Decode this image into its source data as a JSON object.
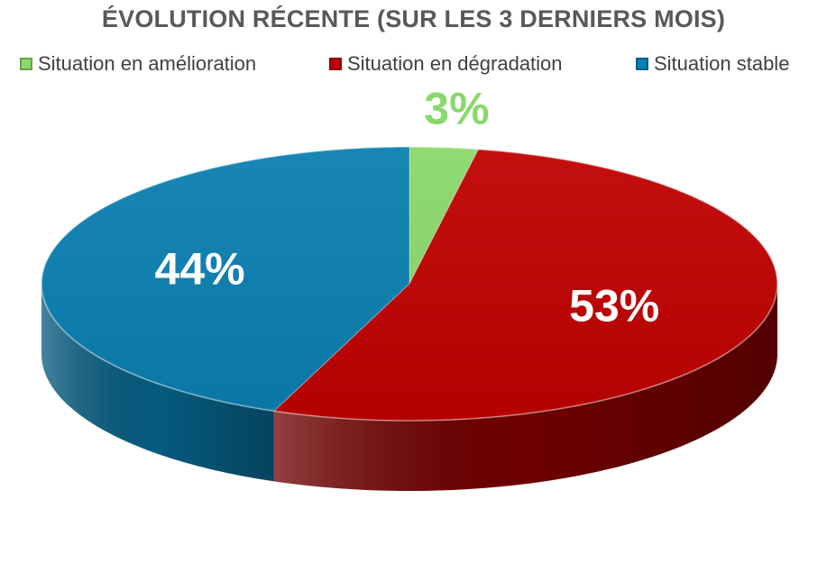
{
  "chart_data": {
    "type": "pie",
    "title": "ÉVOLUTION RÉCENTE (SUR LES 3 DERNIERS MOIS)",
    "legend_position": "top",
    "slices": [
      {
        "name": "Situation en amélioration",
        "value": 3,
        "label": "3%",
        "color": "#8ad86a",
        "side_color": "#5fae45",
        "label_color": "#8ad86a"
      },
      {
        "name": "Situation en dégradation",
        "value": 53,
        "label": "53%",
        "color": "#c00000",
        "side_color": "#6e0000",
        "label_color": "#ffffff"
      },
      {
        "name": "Situation stable",
        "value": 44,
        "label": "44%",
        "color": "#0a7fb0",
        "side_color": "#075a7e",
        "label_color": "#ffffff"
      }
    ]
  }
}
